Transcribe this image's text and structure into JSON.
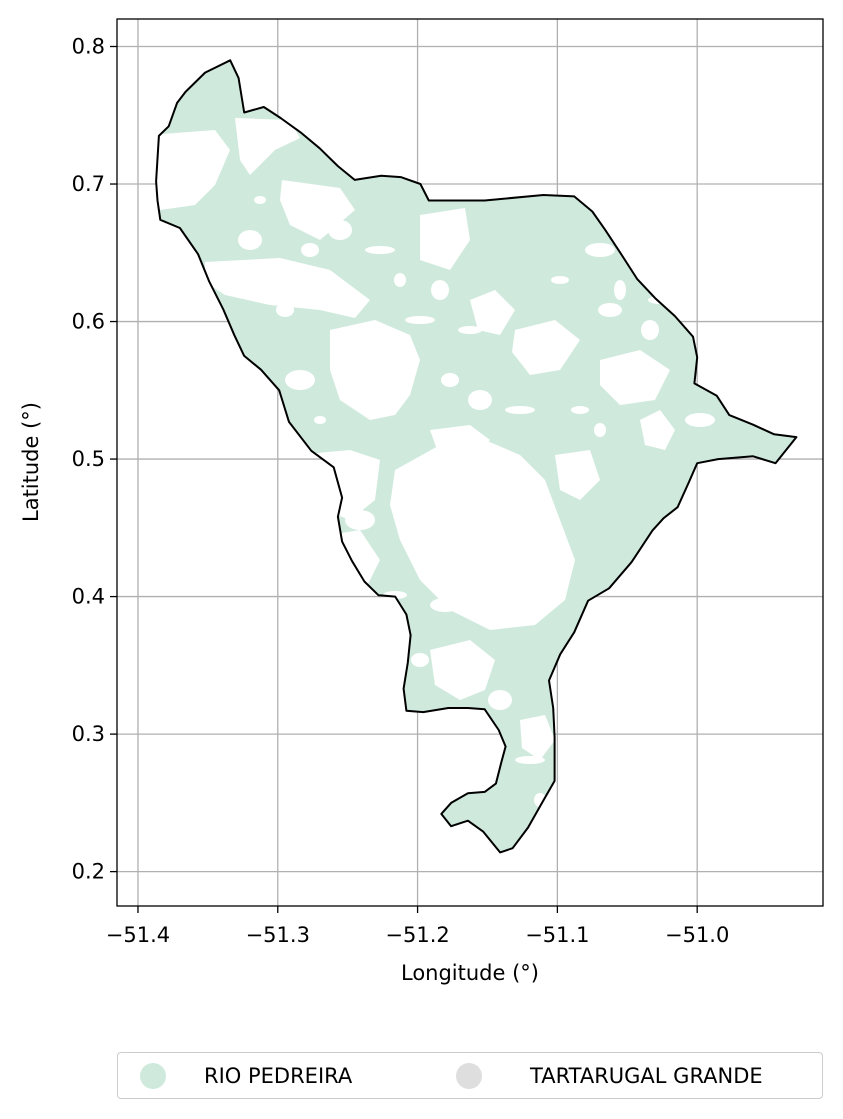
{
  "chart_data": {
    "type": "map",
    "title": "",
    "xlabel": "Longitude (°)",
    "ylabel": "Latitude (°)",
    "xlim": [
      -51.415,
      -50.91
    ],
    "ylim": [
      0.175,
      0.82
    ],
    "xticks": [
      -51.4,
      -51.3,
      -51.2,
      -51.1,
      -51.0
    ],
    "xtick_labels": [
      "−51.4",
      "−51.3",
      "−51.2",
      "−51.1",
      "−51.0"
    ],
    "yticks": [
      0.2,
      0.3,
      0.4,
      0.5,
      0.6,
      0.7,
      0.8
    ],
    "ytick_labels": [
      "0.2",
      "0.3",
      "0.4",
      "0.5",
      "0.6",
      "0.7",
      "0.8"
    ],
    "grid": true,
    "legend_position": "bottom-center",
    "boundary_polygon": [
      [
        -51.334,
        0.79
      ],
      [
        -51.328,
        0.777
      ],
      [
        -51.324,
        0.752
      ],
      [
        -51.31,
        0.756
      ],
      [
        -51.298,
        0.748
      ],
      [
        -51.283,
        0.737
      ],
      [
        -51.27,
        0.726
      ],
      [
        -51.257,
        0.713
      ],
      [
        -51.245,
        0.703
      ],
      [
        -51.226,
        0.706
      ],
      [
        -51.212,
        0.705
      ],
      [
        -51.198,
        0.7
      ],
      [
        -51.192,
        0.688
      ],
      [
        -51.152,
        0.688
      ],
      [
        -51.11,
        0.692
      ],
      [
        -51.088,
        0.691
      ],
      [
        -51.075,
        0.68
      ],
      [
        -51.066,
        0.667
      ],
      [
        -51.055,
        0.65
      ],
      [
        -51.043,
        0.631
      ],
      [
        -51.03,
        0.617
      ],
      [
        -51.016,
        0.604
      ],
      [
        -51.003,
        0.589
      ],
      [
        -51.0,
        0.574
      ],
      [
        -51.002,
        0.555
      ],
      [
        -50.986,
        0.546
      ],
      [
        -50.977,
        0.532
      ],
      [
        -50.96,
        0.525
      ],
      [
        -50.945,
        0.518
      ],
      [
        -50.929,
        0.516
      ],
      [
        -50.944,
        0.497
      ],
      [
        -50.96,
        0.502
      ],
      [
        -50.985,
        0.5
      ],
      [
        -51.0,
        0.497
      ],
      [
        -51.006,
        0.483
      ],
      [
        -51.014,
        0.465
      ],
      [
        -51.024,
        0.457
      ],
      [
        -51.032,
        0.448
      ],
      [
        -51.047,
        0.425
      ],
      [
        -51.063,
        0.406
      ],
      [
        -51.078,
        0.397
      ],
      [
        -51.088,
        0.374
      ],
      [
        -51.098,
        0.358
      ],
      [
        -51.106,
        0.339
      ],
      [
        -51.103,
        0.319
      ],
      [
        -51.102,
        0.298
      ],
      [
        -51.102,
        0.266
      ],
      [
        -51.111,
        0.25
      ],
      [
        -51.121,
        0.232
      ],
      [
        -51.132,
        0.217
      ],
      [
        -51.141,
        0.214
      ],
      [
        -51.153,
        0.229
      ],
      [
        -51.164,
        0.237
      ],
      [
        -51.176,
        0.233
      ],
      [
        -51.183,
        0.242
      ],
      [
        -51.176,
        0.25
      ],
      [
        -51.164,
        0.257
      ],
      [
        -51.152,
        0.258
      ],
      [
        -51.144,
        0.264
      ],
      [
        -51.14,
        0.28
      ],
      [
        -51.137,
        0.291
      ],
      [
        -51.142,
        0.303
      ],
      [
        -51.152,
        0.318
      ],
      [
        -51.164,
        0.319
      ],
      [
        -51.178,
        0.319
      ],
      [
        -51.196,
        0.316
      ],
      [
        -51.208,
        0.317
      ],
      [
        -51.21,
        0.333
      ],
      [
        -51.207,
        0.352
      ],
      [
        -51.205,
        0.372
      ],
      [
        -51.208,
        0.387
      ],
      [
        -51.216,
        0.4
      ],
      [
        -51.228,
        0.401
      ],
      [
        -51.238,
        0.411
      ],
      [
        -51.247,
        0.426
      ],
      [
        -51.254,
        0.44
      ],
      [
        -51.257,
        0.458
      ],
      [
        -51.254,
        0.472
      ],
      [
        -51.26,
        0.494
      ],
      [
        -51.276,
        0.506
      ],
      [
        -51.292,
        0.527
      ],
      [
        -51.299,
        0.55
      ],
      [
        -51.312,
        0.565
      ],
      [
        -51.324,
        0.575
      ],
      [
        -51.331,
        0.59
      ],
      [
        -51.339,
        0.609
      ],
      [
        -51.349,
        0.629
      ],
      [
        -51.357,
        0.649
      ],
      [
        -51.37,
        0.668
      ],
      [
        -51.384,
        0.674
      ],
      [
        -51.386,
        0.688
      ],
      [
        -51.387,
        0.702
      ],
      [
        -51.385,
        0.735
      ],
      [
        -51.378,
        0.742
      ],
      [
        -51.372,
        0.759
      ],
      [
        -51.366,
        0.767
      ],
      [
        -51.352,
        0.781
      ]
    ],
    "boundary_color": "#000000",
    "series": [
      {
        "name": "RIO PEDREIRA",
        "color": "#cfeadd"
      },
      {
        "name": "TARTARUGAL GRANDE",
        "color": "#dedede"
      }
    ]
  }
}
